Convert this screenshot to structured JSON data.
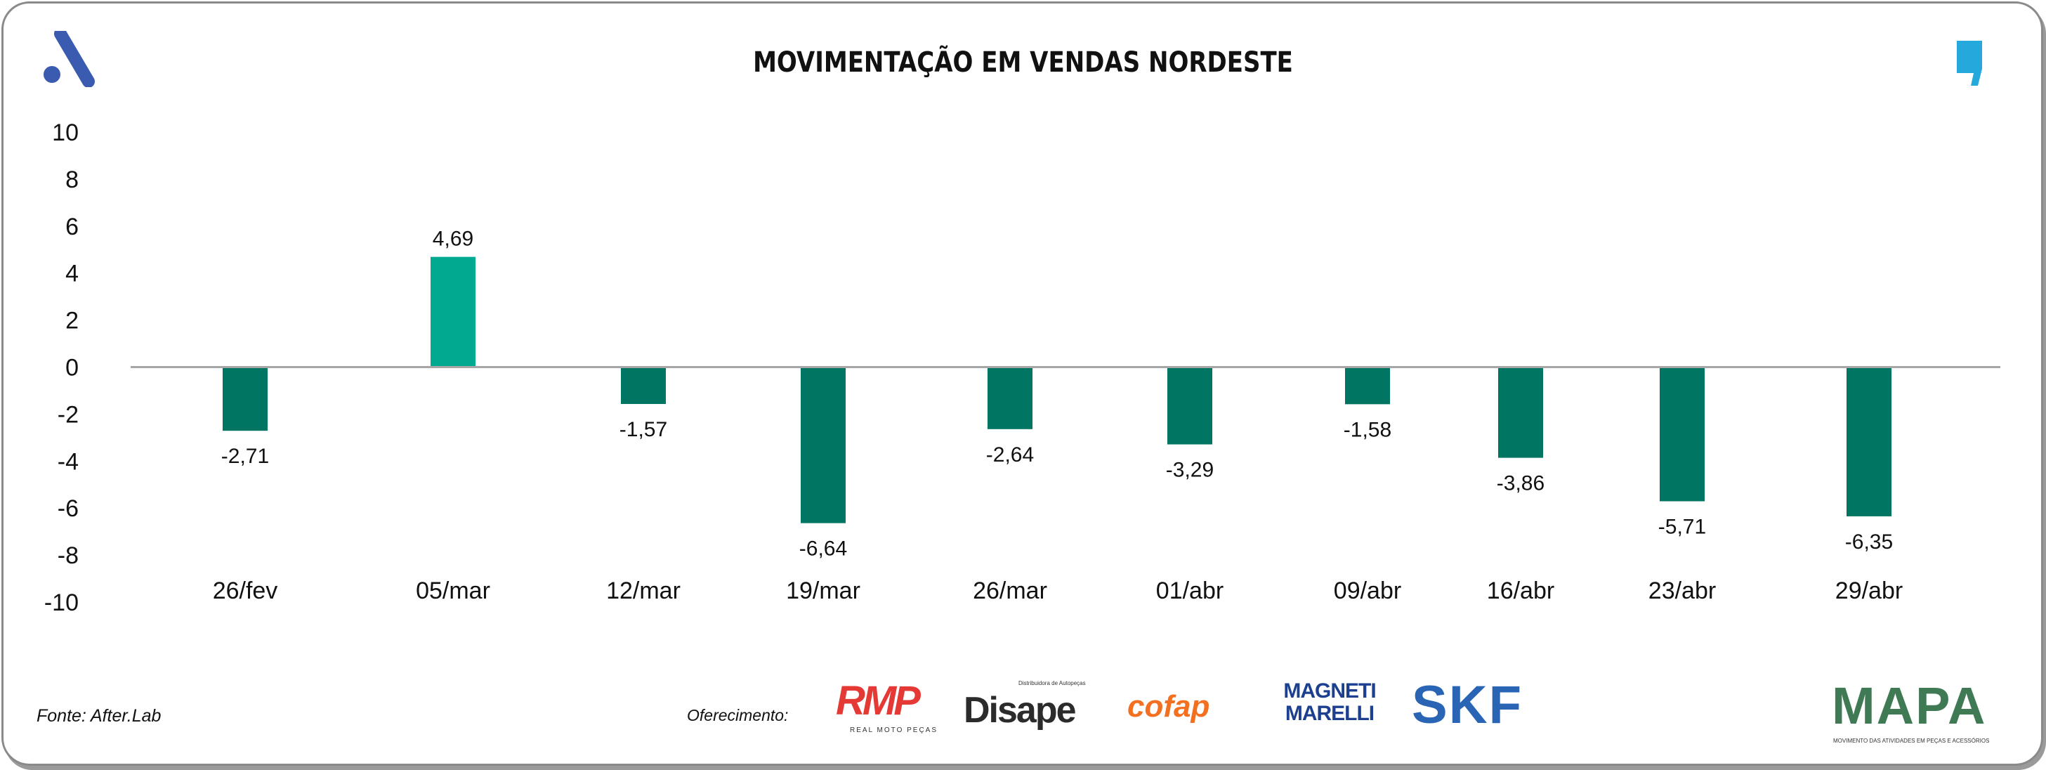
{
  "chart_data": {
    "type": "bar",
    "title": "MOVIMENTAÇÃO EM VENDAS NORDESTE",
    "categories": [
      "26/fev",
      "05/mar",
      "12/mar",
      "19/mar",
      "26/mar",
      "01/abr",
      "09/abr",
      "16/abr",
      "23/abr",
      "29/abr"
    ],
    "values": [
      -2.71,
      4.69,
      -1.57,
      -6.64,
      -2.64,
      -3.29,
      -1.58,
      -3.86,
      -5.71,
      -6.35
    ],
    "value_labels": [
      "-2,71",
      "4,69",
      "-1,57",
      "-6,64",
      "-2,64",
      "-3,29",
      "-1,58",
      "-3,86",
      "-5,71",
      "-6,35"
    ],
    "ylim": [
      -10,
      10
    ],
    "yticks": [
      "10",
      "8",
      "6",
      "4",
      "2",
      "0",
      "-2",
      "-4",
      "-6",
      "-8",
      "-10"
    ],
    "grid": false,
    "colors": {
      "positive": "#00a98f",
      "negative": "#007561"
    }
  },
  "footer": {
    "source": "Fonte: After.Lab",
    "sponsored_by": "Oferecimento:",
    "sponsors": [
      "RMP",
      "Disape",
      "cofap",
      "MAGNETI MARELLI",
      "SKF",
      "MAPA"
    ],
    "sponsor_subtexts": {
      "rmp": "REAL MOTO PEÇAS",
      "disape": "Distribuidora de Autopeças",
      "mapa": "MOVIMENTO DAS ATIVIDADES EM PEÇAS E ACESSÓRIOS"
    }
  }
}
